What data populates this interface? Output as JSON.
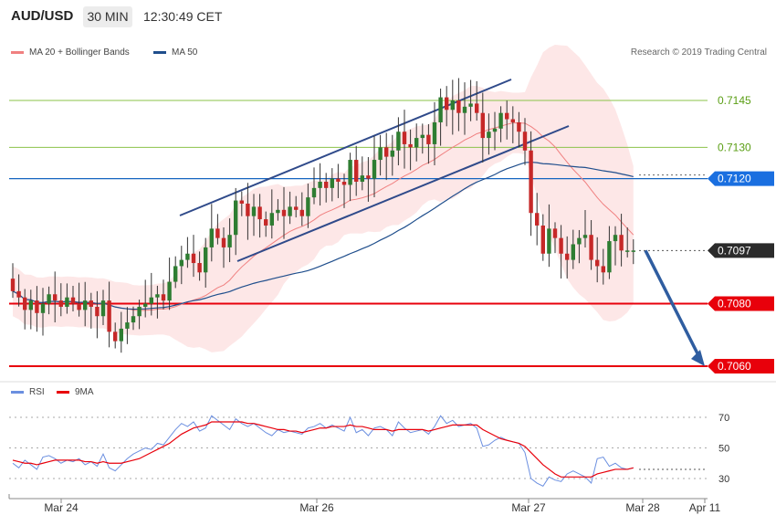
{
  "header": {
    "pair": "AUD/USD",
    "timeframe": "30 MIN",
    "clock": "12:30:49 CET"
  },
  "legend": {
    "ma20_label": "MA 20 + Bollinger Bands",
    "ma50_label": "MA 50",
    "copyright": "Research © 2019 Trading Central"
  },
  "colors": {
    "candle_up": "#2e7d32",
    "candle_down": "#c62828",
    "ma20": "#f08080",
    "bollinger_fill": "#fde3e3",
    "ma50": "#1f4e8c",
    "channel": "#2f4a8a",
    "resistance_green": "#8bc34a",
    "support_red": "#e8000b",
    "pivot_blue": "#1565c0",
    "rsi": "#6b8fe0",
    "rsi_ma": "#e8000b",
    "forecast_arrow": "#2f5da0"
  },
  "chart_data": [
    {
      "type": "candlestick",
      "title": "AUD/USD 30 MIN",
      "y_axis": {
        "min": 7.0035,
        "max": 7.1189,
        "levels": [
          {
            "value": "0.7145",
            "kind": "resistance"
          },
          {
            "value": "0.7130",
            "kind": "resistance"
          },
          {
            "value": "0.7120",
            "kind": "pivot"
          },
          {
            "value": "0.7097",
            "kind": "last"
          },
          {
            "value": "0.7080",
            "kind": "support"
          },
          {
            "value": "0.7060",
            "kind": "support"
          }
        ]
      },
      "x_axis": {
        "ticks": [
          "Mar 24",
          "Mar 26",
          "Mar 27",
          "Mar 28",
          "Apr 11"
        ]
      },
      "series_close": [
        0.7084,
        0.7082,
        0.7078,
        0.7081,
        0.7077,
        0.708,
        0.7083,
        0.7081,
        0.7079,
        0.7082,
        0.708,
        0.7078,
        0.7081,
        0.7079,
        0.7076,
        0.7081,
        0.7071,
        0.7068,
        0.7072,
        0.7074,
        0.7076,
        0.7079,
        0.708,
        0.7082,
        0.7083,
        0.7081,
        0.7087,
        0.7092,
        0.7094,
        0.7096,
        0.7093,
        0.709,
        0.7098,
        0.7104,
        0.7101,
        0.7098,
        0.7102,
        0.7113,
        0.7112,
        0.7108,
        0.7111,
        0.7107,
        0.7105,
        0.7109,
        0.711,
        0.7108,
        0.7111,
        0.711,
        0.7108,
        0.7114,
        0.7117,
        0.7119,
        0.7117,
        0.712,
        0.7119,
        0.7118,
        0.7126,
        0.7119,
        0.7121,
        0.712,
        0.7126,
        0.713,
        0.7127,
        0.7129,
        0.7135,
        0.7131,
        0.713,
        0.7133,
        0.7134,
        0.7131,
        0.7138,
        0.7146,
        0.7142,
        0.7145,
        0.7141,
        0.7143,
        0.7144,
        0.7141,
        0.7133,
        0.7135,
        0.7136,
        0.7141,
        0.7139,
        0.7138,
        0.7135,
        0.7129,
        0.7109,
        0.7105,
        0.7096,
        0.7104,
        0.7101,
        0.7096,
        0.7094,
        0.7099,
        0.7101,
        0.7102,
        0.7094,
        0.7092,
        0.709,
        0.71,
        0.7102,
        0.7097,
        0.7097,
        0.7097
      ],
      "indicators": [
        "MA 20 + Bollinger Bands",
        "MA 50"
      ],
      "annotation": "Rising channel broken; forecast arrow down from 0.7097 to 0.7060"
    },
    {
      "type": "line",
      "title": "RSI",
      "series": [
        {
          "name": "RSI",
          "values": [
            40,
            37,
            42,
            39,
            36,
            44,
            45,
            43,
            40,
            42,
            41,
            43,
            39,
            41,
            38,
            46,
            37,
            35,
            39,
            43,
            46,
            48,
            50,
            49,
            53,
            52,
            57,
            62,
            66,
            64,
            67,
            61,
            63,
            71,
            68,
            65,
            62,
            69,
            66,
            64,
            66,
            63,
            60,
            58,
            62,
            60,
            61,
            60,
            59,
            63,
            64,
            66,
            63,
            65,
            63,
            61,
            70,
            60,
            62,
            58,
            63,
            64,
            62,
            58,
            67,
            63,
            60,
            61,
            62,
            59,
            64,
            71,
            66,
            68,
            64,
            65,
            66,
            63,
            51,
            52,
            55,
            57,
            55,
            54,
            53,
            47,
            30,
            27,
            25,
            31,
            29,
            28,
            33,
            35,
            33,
            31,
            27,
            43,
            44,
            38,
            40,
            37,
            36,
            37
          ]
        },
        {
          "name": "9MA",
          "values": [
            42,
            41,
            40,
            40,
            39,
            40,
            41,
            42,
            42,
            42,
            42,
            42,
            41,
            41,
            40,
            41,
            40,
            40,
            40,
            41,
            42,
            43,
            45,
            47,
            49,
            51,
            53,
            56,
            59,
            61,
            63,
            64,
            65,
            67,
            67,
            67,
            67,
            67,
            67,
            66,
            66,
            65,
            64,
            63,
            62,
            62,
            61,
            61,
            60,
            61,
            62,
            63,
            63,
            64,
            64,
            64,
            65,
            64,
            64,
            63,
            62,
            62,
            62,
            61,
            62,
            62,
            62,
            62,
            62,
            61,
            62,
            63,
            64,
            65,
            65,
            65,
            65,
            65,
            62,
            60,
            58,
            56,
            55,
            54,
            53,
            51,
            47,
            43,
            39,
            36,
            33,
            31,
            31,
            31,
            31,
            31,
            31,
            33,
            34,
            35,
            36,
            36,
            36,
            37
          ]
        }
      ],
      "y_ticks": [
        "70",
        "50",
        "30"
      ],
      "ylim": [
        20,
        80
      ]
    }
  ],
  "sub_legend": {
    "rsi_label": "RSI",
    "ma_label": "9MA"
  }
}
